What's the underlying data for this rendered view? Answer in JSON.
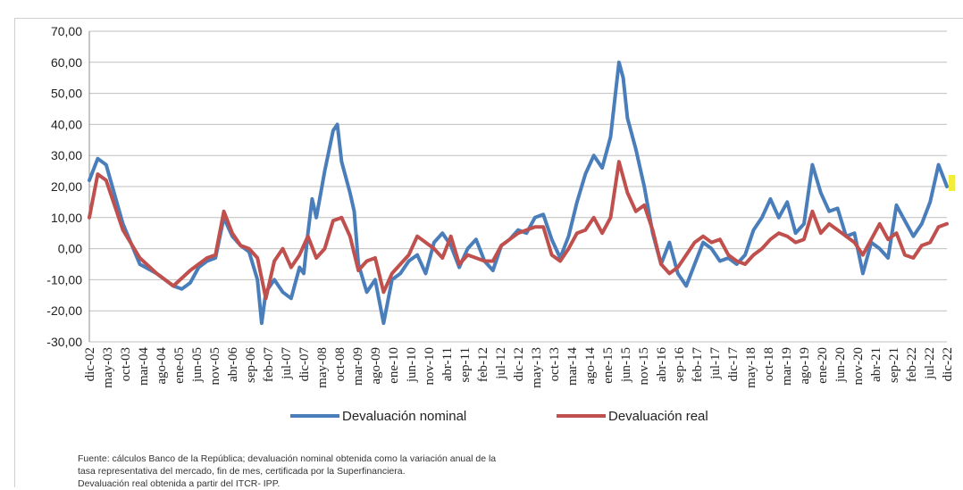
{
  "chart_data": {
    "type": "line",
    "title": "",
    "xlabel": "",
    "ylabel": "",
    "ylim": [
      -30,
      70
    ],
    "yticks": [
      "70,00",
      "60,00",
      "50,00",
      "40,00",
      "30,00",
      "20,00",
      "10,00",
      "0,00",
      "-10,00",
      "-20,00",
      "-30,00"
    ],
    "grid": "horizontal",
    "legend": "bottom-center",
    "x_tick_labels": [
      "dic-02",
      "may-03",
      "oct-03",
      "mar-04",
      "ago-04",
      "ene-05",
      "jun-05",
      "nov-05",
      "abr-06",
      "sep-06",
      "feb-07",
      "jul-07",
      "dic-07",
      "may-08",
      "oct-08",
      "mar-09",
      "ago-09",
      "ene-10",
      "jun-10",
      "nov-10",
      "abr-11",
      "sep-11",
      "feb-12",
      "jul-12",
      "dic-12",
      "may-13",
      "oct-13",
      "mar-14",
      "ago-14",
      "ene-15",
      "jun-15",
      "nov-15",
      "abr-16",
      "sep-16",
      "feb-17",
      "jul-17",
      "dic-17",
      "may-18",
      "oct-18",
      "mar-19",
      "ago-19",
      "ene-20",
      "jun-20",
      "nov-20",
      "abr-21",
      "sep-21",
      "feb-22",
      "jul-22",
      "dic-22"
    ],
    "series": [
      {
        "name": "Devaluación nominal",
        "color": "#4a7ebb",
        "points": [
          [
            0,
            22
          ],
          [
            1,
            29
          ],
          [
            2,
            27
          ],
          [
            4,
            8
          ],
          [
            6,
            -5
          ],
          [
            8,
            -8
          ],
          [
            10,
            -12
          ],
          [
            11,
            -13
          ],
          [
            12,
            -11
          ],
          [
            13,
            -6
          ],
          [
            14,
            -4
          ],
          [
            15,
            -3
          ],
          [
            16,
            10
          ],
          [
            17,
            4
          ],
          [
            18,
            1
          ],
          [
            19,
            -1
          ],
          [
            20,
            -10
          ],
          [
            20.5,
            -24
          ],
          [
            21,
            -14
          ],
          [
            22,
            -10
          ],
          [
            23,
            -14
          ],
          [
            24,
            -16
          ],
          [
            25,
            -6
          ],
          [
            25.5,
            -8
          ],
          [
            26,
            5
          ],
          [
            26.5,
            16
          ],
          [
            27,
            10
          ],
          [
            28,
            25
          ],
          [
            29,
            38
          ],
          [
            29.5,
            40
          ],
          [
            30,
            28
          ],
          [
            31,
            18
          ],
          [
            31.5,
            12
          ],
          [
            32,
            -5
          ],
          [
            33,
            -14
          ],
          [
            34,
            -10
          ],
          [
            35,
            -24
          ],
          [
            36,
            -10
          ],
          [
            37,
            -8
          ],
          [
            38,
            -4
          ],
          [
            39,
            -2
          ],
          [
            40,
            -8
          ],
          [
            41,
            2
          ],
          [
            42,
            5
          ],
          [
            43,
            1
          ],
          [
            44,
            -6
          ],
          [
            45,
            0
          ],
          [
            46,
            3
          ],
          [
            47,
            -4
          ],
          [
            48,
            -7
          ],
          [
            49,
            1
          ],
          [
            50,
            3
          ],
          [
            51,
            6
          ],
          [
            52,
            5
          ],
          [
            53,
            10
          ],
          [
            54,
            11
          ],
          [
            55,
            3
          ],
          [
            56,
            -3
          ],
          [
            57,
            4
          ],
          [
            58,
            15
          ],
          [
            59,
            24
          ],
          [
            60,
            30
          ],
          [
            61,
            26
          ],
          [
            62,
            36
          ],
          [
            63,
            60
          ],
          [
            63.5,
            55
          ],
          [
            64,
            42
          ],
          [
            65,
            32
          ],
          [
            66,
            20
          ],
          [
            67,
            5
          ],
          [
            68,
            -5
          ],
          [
            69,
            2
          ],
          [
            70,
            -8
          ],
          [
            71,
            -12
          ],
          [
            72,
            -5
          ],
          [
            73,
            2
          ],
          [
            74,
            0
          ],
          [
            75,
            -4
          ],
          [
            76,
            -3
          ],
          [
            77,
            -5
          ],
          [
            78,
            -2
          ],
          [
            79,
            6
          ],
          [
            80,
            10
          ],
          [
            81,
            16
          ],
          [
            82,
            10
          ],
          [
            83,
            15
          ],
          [
            84,
            5
          ],
          [
            85,
            8
          ],
          [
            86,
            27
          ],
          [
            87,
            18
          ],
          [
            88,
            12
          ],
          [
            89,
            13
          ],
          [
            90,
            4
          ],
          [
            91,
            5
          ],
          [
            92,
            -8
          ],
          [
            93,
            2
          ],
          [
            94,
            0
          ],
          [
            95,
            -3
          ],
          [
            96,
            14
          ],
          [
            97,
            9
          ],
          [
            98,
            4
          ],
          [
            99,
            8
          ],
          [
            100,
            15
          ],
          [
            101,
            27
          ],
          [
            102,
            20
          ]
        ]
      },
      {
        "name": "Devaluación real",
        "color": "#c0504d",
        "points": [
          [
            0,
            10
          ],
          [
            1,
            24
          ],
          [
            2,
            22
          ],
          [
            4,
            6
          ],
          [
            6,
            -3
          ],
          [
            8,
            -8
          ],
          [
            10,
            -12
          ],
          [
            12,
            -7
          ],
          [
            14,
            -3
          ],
          [
            15,
            -2
          ],
          [
            16,
            12
          ],
          [
            17,
            5
          ],
          [
            18,
            1
          ],
          [
            19,
            0
          ],
          [
            20,
            -3
          ],
          [
            21,
            -16
          ],
          [
            22,
            -4
          ],
          [
            23,
            0
          ],
          [
            24,
            -6
          ],
          [
            25,
            -2
          ],
          [
            26,
            4
          ],
          [
            27,
            -3
          ],
          [
            28,
            0
          ],
          [
            29,
            9
          ],
          [
            30,
            10
          ],
          [
            31,
            4
          ],
          [
            32,
            -7
          ],
          [
            33,
            -4
          ],
          [
            34,
            -3
          ],
          [
            35,
            -14
          ],
          [
            36,
            -8
          ],
          [
            37,
            -5
          ],
          [
            38,
            -2
          ],
          [
            39,
            4
          ],
          [
            40,
            2
          ],
          [
            41,
            0
          ],
          [
            42,
            -3
          ],
          [
            43,
            4
          ],
          [
            44,
            -5
          ],
          [
            45,
            -2
          ],
          [
            46,
            -3
          ],
          [
            47,
            -4
          ],
          [
            48,
            -4
          ],
          [
            49,
            1
          ],
          [
            50,
            3
          ],
          [
            51,
            5
          ],
          [
            52,
            6
          ],
          [
            53,
            7
          ],
          [
            54,
            7
          ],
          [
            55,
            -2
          ],
          [
            56,
            -4
          ],
          [
            57,
            0
          ],
          [
            58,
            5
          ],
          [
            59,
            6
          ],
          [
            60,
            10
          ],
          [
            61,
            5
          ],
          [
            62,
            10
          ],
          [
            63,
            28
          ],
          [
            64,
            18
          ],
          [
            65,
            12
          ],
          [
            66,
            14
          ],
          [
            67,
            6
          ],
          [
            68,
            -5
          ],
          [
            69,
            -8
          ],
          [
            70,
            -6
          ],
          [
            71,
            -2
          ],
          [
            72,
            2
          ],
          [
            73,
            4
          ],
          [
            74,
            2
          ],
          [
            75,
            3
          ],
          [
            76,
            -2
          ],
          [
            77,
            -4
          ],
          [
            78,
            -5
          ],
          [
            79,
            -2
          ],
          [
            80,
            0
          ],
          [
            81,
            3
          ],
          [
            82,
            5
          ],
          [
            83,
            4
          ],
          [
            84,
            2
          ],
          [
            85,
            3
          ],
          [
            86,
            12
          ],
          [
            87,
            5
          ],
          [
            88,
            8
          ],
          [
            89,
            6
          ],
          [
            90,
            4
          ],
          [
            91,
            2
          ],
          [
            92,
            -2
          ],
          [
            93,
            3
          ],
          [
            94,
            8
          ],
          [
            95,
            3
          ],
          [
            96,
            5
          ],
          [
            97,
            -2
          ],
          [
            98,
            -3
          ],
          [
            99,
            1
          ],
          [
            100,
            2
          ],
          [
            101,
            7
          ],
          [
            102,
            8
          ]
        ]
      }
    ]
  },
  "note_lines": [
    "Fuente: cálculos Banco de la República; devaluación nominal obtenida como la variación anual de la",
    "tasa representativa del mercado, fin de mes, certificada por la Superfinanciera.",
    "Devaluación real obtenida a partir del ITCR- IPP."
  ]
}
